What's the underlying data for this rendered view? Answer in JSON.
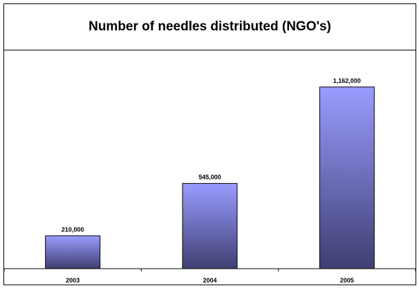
{
  "chart_data": {
    "type": "bar",
    "title": "Number of needles distributed (NGO's)",
    "categories": [
      "2003",
      "2004",
      "2005"
    ],
    "values": [
      210000,
      545000,
      1162000
    ],
    "value_labels": [
      "210,000",
      "545,000",
      "1,162,000"
    ],
    "xlabel": "",
    "ylabel": "",
    "ylim": [
      0,
      1400000
    ],
    "grid": false,
    "legend": "none",
    "colors": {
      "bar_top": "#9a9cff",
      "bar_bottom": "#3f3f72",
      "bar_stroke": "#000000",
      "frame": "#000000"
    }
  }
}
